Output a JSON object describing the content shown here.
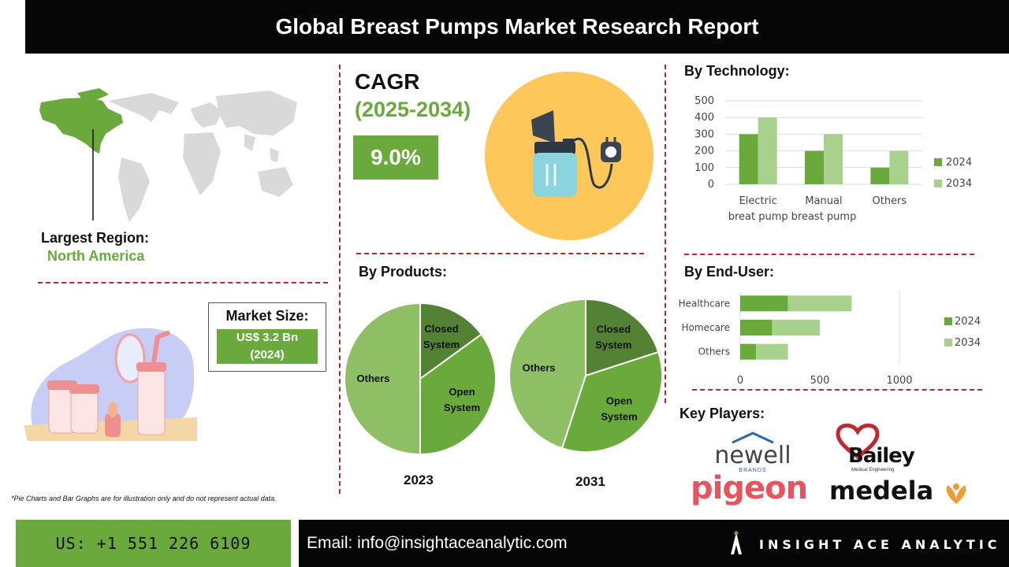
{
  "header": {
    "title": "Global Breast Pumps Market Research Report"
  },
  "region": {
    "label": "Largest Region:",
    "value": "North America"
  },
  "cagr": {
    "label": "CAGR",
    "period": "(2025-2034)",
    "value": "9.0%"
  },
  "market_size": {
    "label": "Market Size:",
    "value_line1": "US$ 3.2 Bn",
    "value_line2": "(2024)"
  },
  "sections": {
    "technology": "By Technology:",
    "products": "By Products:",
    "end_user": "By End-User:",
    "key_players": "Key Players:"
  },
  "players": {
    "newell": "newell",
    "newell_sub": "BRANDS",
    "bailey": "Bailey",
    "bailey_sub": "Medical Engineering",
    "pigeon": "pigeon",
    "medela": "medela"
  },
  "note": "*Pie Charts and Bar Graphs are for illustration only and do not represent actual data.",
  "footer": {
    "phone": "US: +1 551 226 6109",
    "email": "Email: info@insightaceanalytic.com",
    "brand": "INSIGHT ACE ANALYTIC"
  },
  "colors": {
    "green": "#6aaa3c",
    "light_green": "#a9d18e",
    "dark_green": "#548235",
    "red_dash": "#b22a2a",
    "yellow": "#fec75a"
  },
  "chart_data": [
    {
      "type": "bar",
      "title": "By Technology:",
      "categories": [
        "Electric breat pump",
        "Manual breast pump",
        "Others"
      ],
      "category_lines": [
        [
          "Electric",
          "breat pump"
        ],
        [
          "Manual",
          "breast pump"
        ],
        [
          "Others"
        ]
      ],
      "series": [
        {
          "name": "2024",
          "values": [
            300,
            200,
            100
          ],
          "color": "#6aaa3c"
        },
        {
          "name": "2034",
          "values": [
            400,
            300,
            200
          ],
          "color": "#a9d18e"
        }
      ],
      "ylim": [
        0,
        500
      ],
      "yticks": [
        "0",
        "100",
        "200",
        "300",
        "400",
        "500"
      ],
      "grid": true,
      "legend": "right"
    },
    {
      "type": "bar",
      "orientation": "horizontal",
      "stacked": true,
      "title": "By End-User:",
      "categories": [
        "Healthcare",
        "Homecare",
        "Others"
      ],
      "series": [
        {
          "name": "2024",
          "values": [
            300,
            200,
            100
          ],
          "color": "#6aaa3c"
        },
        {
          "name": "2034",
          "values": [
            400,
            300,
            200
          ],
          "color": "#a9d18e"
        }
      ],
      "xlim": [
        0,
        1000
      ],
      "xticks": [
        "0",
        "500",
        "1000"
      ],
      "legend": "right"
    },
    {
      "type": "pie",
      "title": "2023",
      "categories": [
        "Closed System",
        "Open System",
        "Others"
      ],
      "label_lines": [
        [
          "Closed",
          "System"
        ],
        [
          "Open",
          "System"
        ],
        [
          "Others"
        ]
      ],
      "values": [
        15,
        35,
        50
      ],
      "colors": [
        "#548235",
        "#6aaa3c",
        "#8fbf65"
      ]
    },
    {
      "type": "pie",
      "title": "2031",
      "categories": [
        "Closed System",
        "Open System",
        "Others"
      ],
      "label_lines": [
        [
          "Closed",
          "System"
        ],
        [
          "Open",
          "System"
        ],
        [
          "Others"
        ]
      ],
      "values": [
        20,
        35,
        45
      ],
      "colors": [
        "#548235",
        "#6aaa3c",
        "#8fbf65"
      ]
    }
  ]
}
